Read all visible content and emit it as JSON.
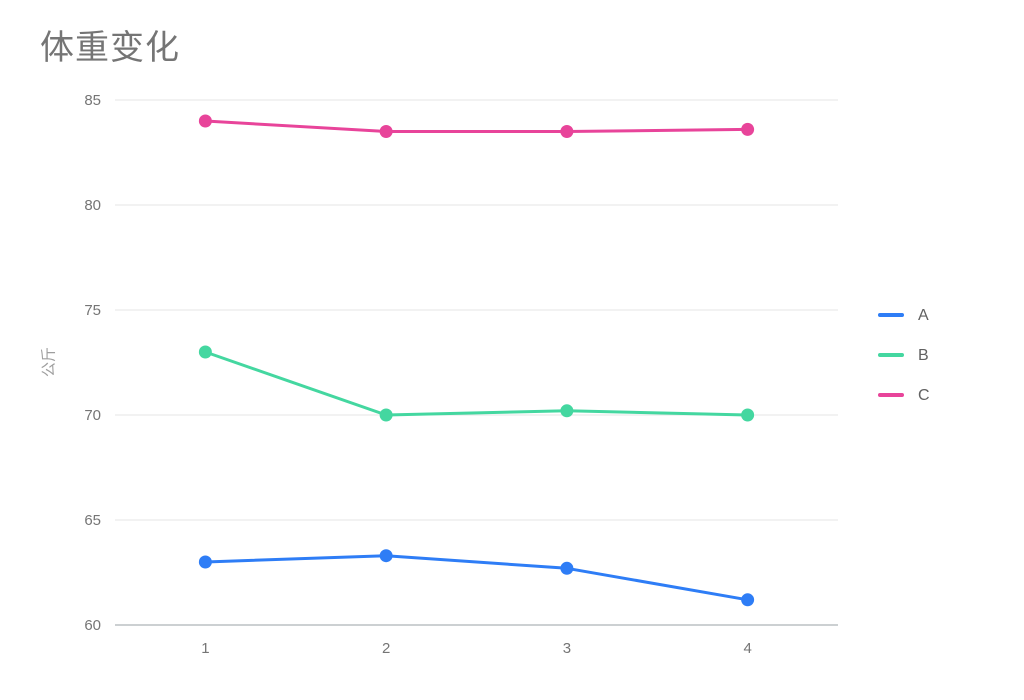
{
  "title": "体重变化",
  "chart_data": {
    "type": "line",
    "title": "体重变化",
    "xlabel": "",
    "ylabel": "公斤",
    "xticks": [
      "1",
      "2",
      "3",
      "4"
    ],
    "x": [
      1,
      2,
      3,
      4
    ],
    "yticks": [
      60,
      65,
      70,
      75,
      80,
      85
    ],
    "ylim": [
      60,
      85
    ],
    "grid": true,
    "legend_position": "right",
    "series": [
      {
        "name": "A",
        "color": "#2e7df6",
        "values": [
          63,
          63.3,
          62.7,
          61.2
        ]
      },
      {
        "name": "B",
        "color": "#44d7a0",
        "values": [
          73,
          70,
          70.2,
          70
        ]
      },
      {
        "name": "C",
        "color": "#e8449a",
        "values": [
          84,
          83.5,
          83.5,
          83.6
        ]
      }
    ]
  },
  "style": {
    "grid_color": "#e6e6e6",
    "axis_color": "#9aa0a6",
    "tick_label_color": "#757575",
    "legend_label_color": "#616161",
    "title_color": "#757575"
  }
}
